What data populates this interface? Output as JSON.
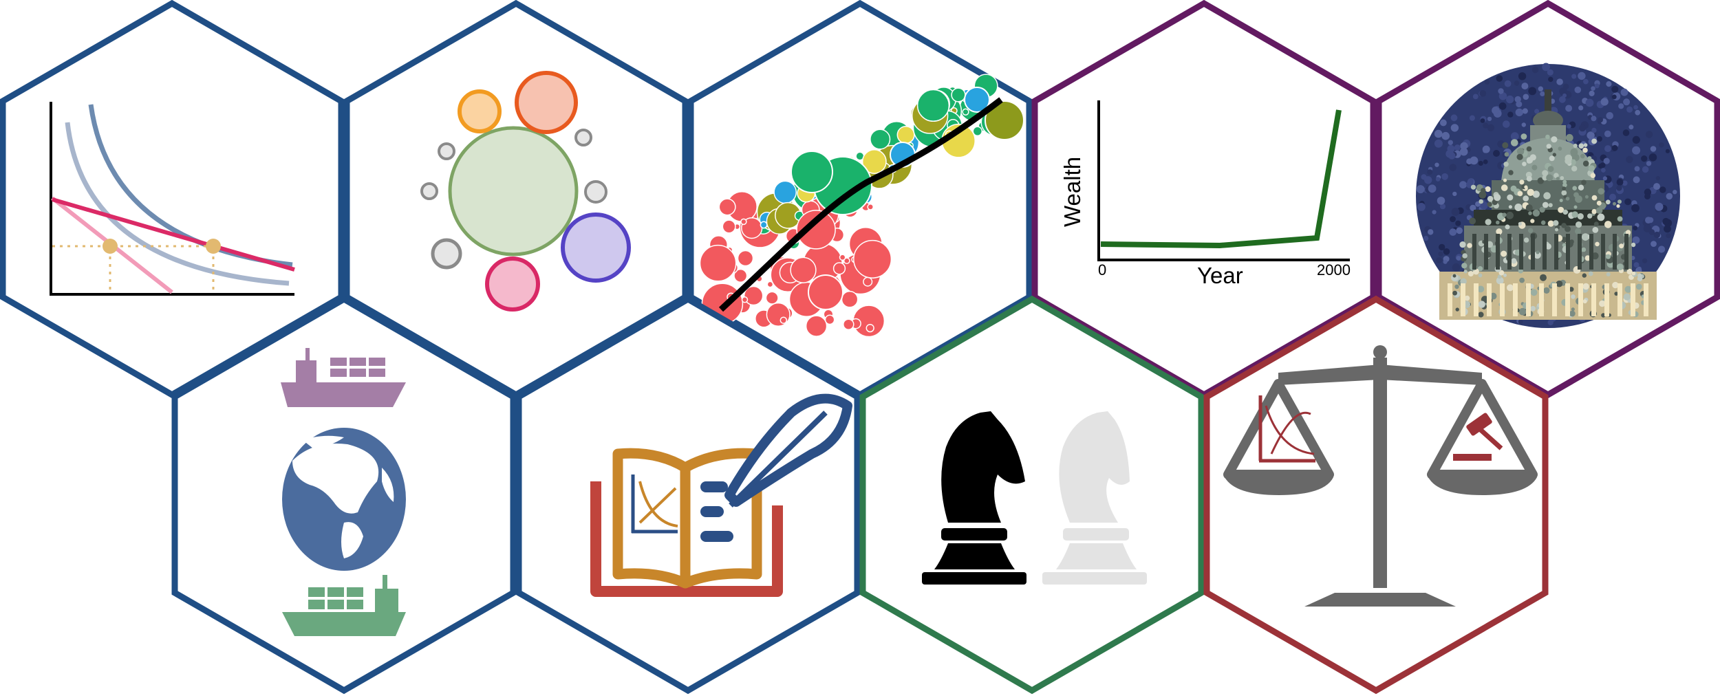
{
  "tiles": [
    {
      "id": "indifference",
      "icon": "indifference-curves-icon",
      "border_color": "#1f4e85"
    },
    {
      "id": "bubbles",
      "icon": "bubble-cluster-icon",
      "border_color": "#1f4e85"
    },
    {
      "id": "scatter",
      "icon": "scatter-trend-icon",
      "border_color": "#1f4e85"
    },
    {
      "id": "wealth",
      "icon": "wealth-chart-icon",
      "border_color": "#621a61"
    },
    {
      "id": "capitol",
      "icon": "capitol-dome-icon",
      "border_color": "#621a61"
    },
    {
      "id": "trade",
      "icon": "globe-ships-icon",
      "border_color": "#1f4e85"
    },
    {
      "id": "book",
      "icon": "book-quill-icon",
      "border_color": "#1f4e85"
    },
    {
      "id": "chess",
      "icon": "chess-knights-icon",
      "border_color": "#2f7a4d"
    },
    {
      "id": "law",
      "icon": "scales-of-justice-icon",
      "border_color": "#9c3238"
    }
  ],
  "wealth_chart": {
    "ylabel": "Wealth",
    "xlabel": "Year",
    "x_start_label": "0",
    "x_end_label": "2000"
  },
  "colors": {
    "blue_border": "#1f4e85",
    "purple_border": "#621a61",
    "green_border": "#2f7a4d",
    "red_border": "#9c3238",
    "scatter_green": "#1ab26b",
    "scatter_red": "#f2595e",
    "wealth_line": "#1f6b1f"
  }
}
